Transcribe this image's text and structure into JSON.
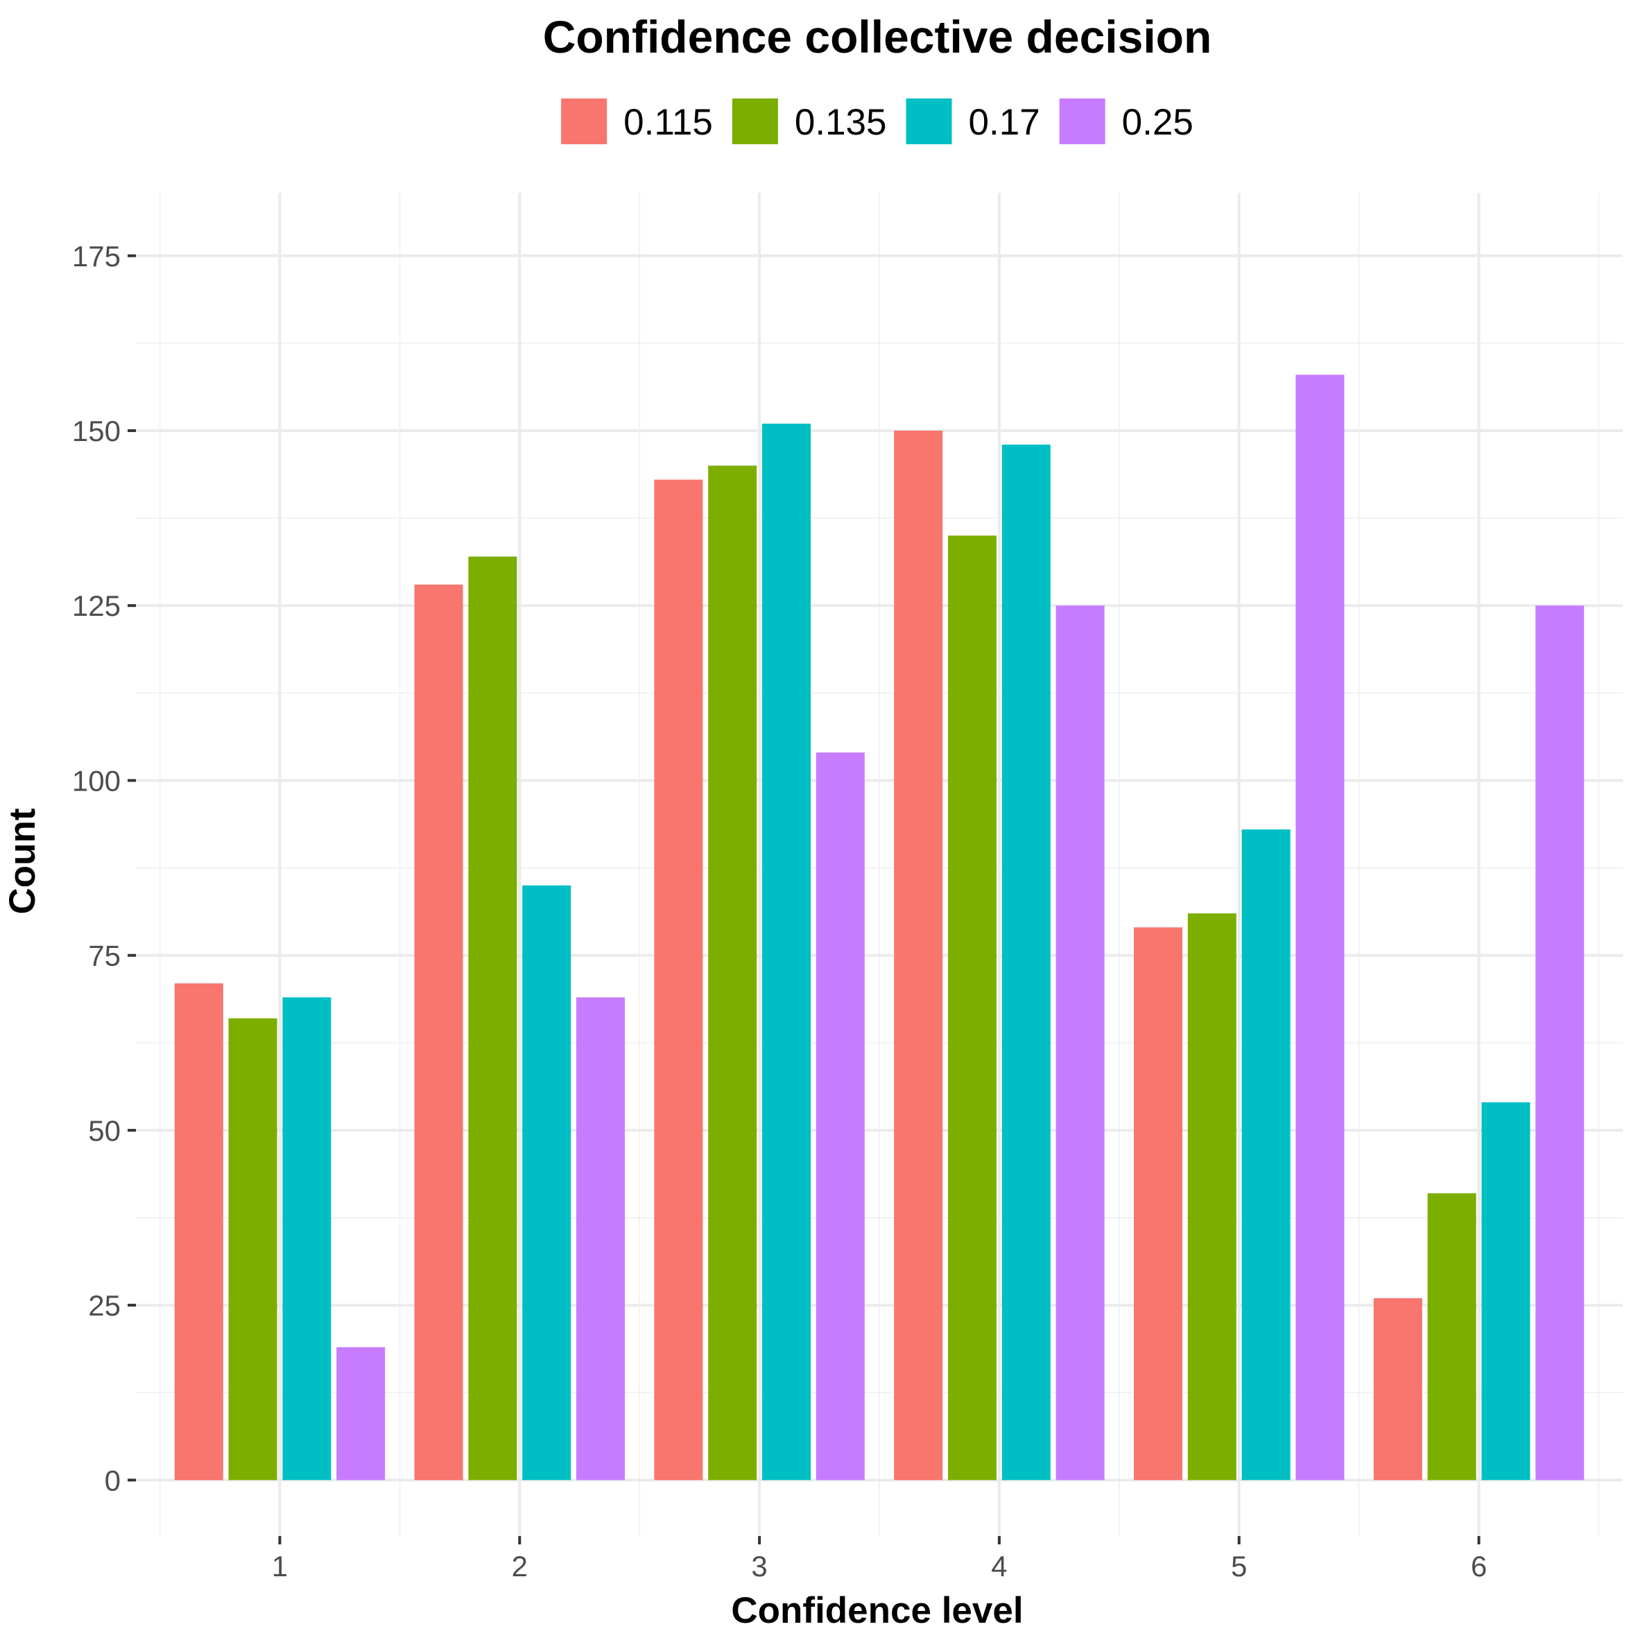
{
  "chart_data": {
    "type": "bar",
    "title": "Confidence collective decision",
    "xlabel": "Confidence level",
    "ylabel": "Count",
    "categories": [
      "1",
      "2",
      "3",
      "4",
      "5",
      "6"
    ],
    "series": [
      {
        "name": "0.115",
        "color": "#F8766D",
        "values": [
          71,
          128,
          143,
          150,
          79,
          26
        ]
      },
      {
        "name": "0.135",
        "color": "#7CAE00",
        "values": [
          66,
          132,
          145,
          135,
          81,
          41
        ]
      },
      {
        "name": "0.17",
        "color": "#00BFC4",
        "values": [
          69,
          85,
          151,
          148,
          93,
          54
        ]
      },
      {
        "name": "0.25",
        "color": "#C77CFF",
        "values": [
          19,
          69,
          104,
          125,
          158,
          125
        ]
      }
    ],
    "yticks": [
      0,
      25,
      50,
      75,
      100,
      125,
      150,
      175
    ],
    "ylim": [
      -8,
      184
    ],
    "legend_position": "top",
    "grid": true
  }
}
